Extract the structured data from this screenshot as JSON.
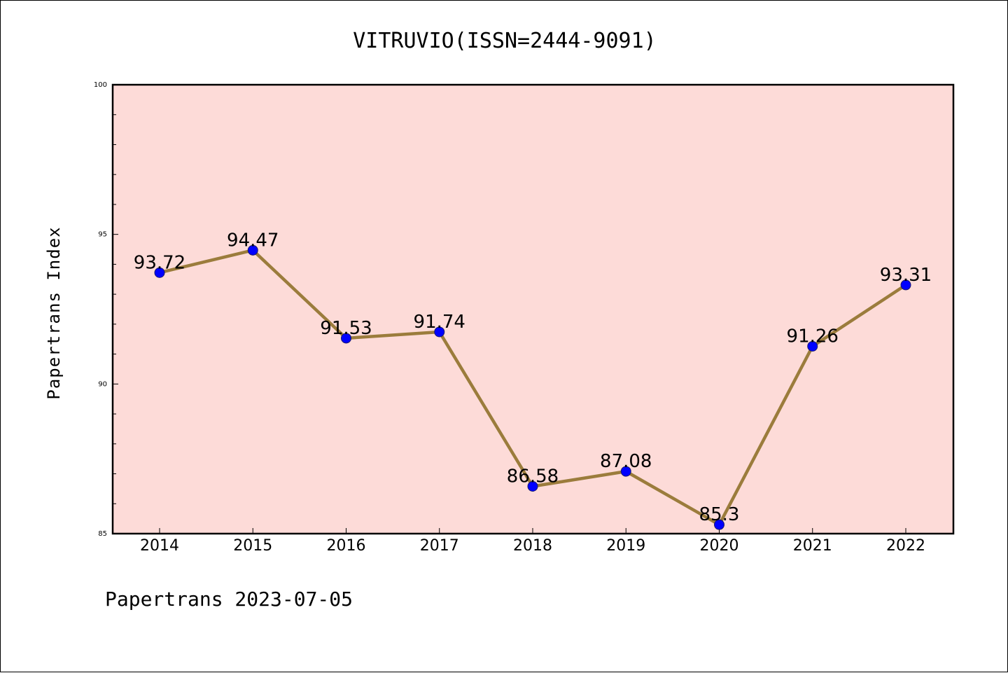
{
  "chart_data": {
    "type": "line",
    "title": "VITRUVIO(ISSN=2444-9091)",
    "xlabel": "",
    "ylabel": "Papertrans Index",
    "categories": [
      "2014",
      "2015",
      "2016",
      "2017",
      "2018",
      "2019",
      "2020",
      "2021",
      "2022"
    ],
    "values": [
      93.72,
      94.47,
      91.53,
      91.74,
      86.58,
      87.08,
      85.3,
      91.26,
      93.31
    ],
    "data_labels": [
      "93.72",
      "94.47",
      "91.53",
      "91.74",
      "86.58",
      "87.08",
      "85.3",
      "91.26",
      "93.31"
    ],
    "ylim": [
      85,
      100
    ],
    "yticks": [
      "85",
      "90",
      "95",
      "100"
    ],
    "grid": false,
    "legend": "none",
    "colors": {
      "plot_background": "#fddbd8",
      "line": "#9b7c3c",
      "marker": "#0000ff",
      "marker_edge": "#1a1a6e"
    }
  },
  "footer": "Papertrans 2023-07-05"
}
